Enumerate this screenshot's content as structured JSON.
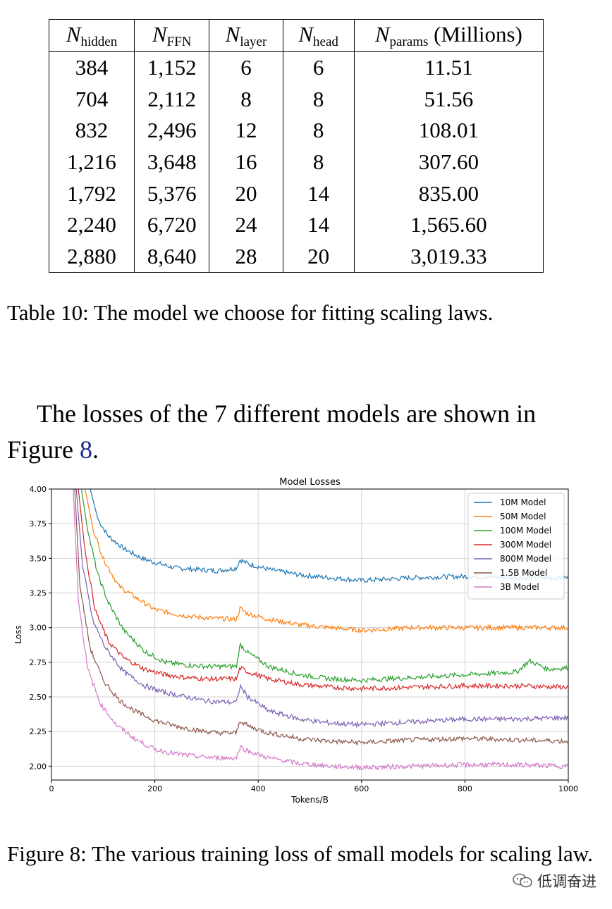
{
  "table": {
    "headers": [
      {
        "sym": "N",
        "sub": "hidden",
        "suffix": ""
      },
      {
        "sym": "N",
        "sub": "FFN",
        "suffix": ""
      },
      {
        "sym": "N",
        "sub": "layer",
        "suffix": ""
      },
      {
        "sym": "N",
        "sub": "head",
        "suffix": ""
      },
      {
        "sym": "N",
        "sub": "params",
        "suffix": " (Millions)"
      }
    ],
    "rows": [
      [
        "384",
        "1,152",
        "6",
        "6",
        "11.51"
      ],
      [
        "704",
        "2,112",
        "8",
        "8",
        "51.56"
      ],
      [
        "832",
        "2,496",
        "12",
        "8",
        "108.01"
      ],
      [
        "1,216",
        "3,648",
        "16",
        "8",
        "307.60"
      ],
      [
        "1,792",
        "5,376",
        "20",
        "14",
        "835.00"
      ],
      [
        "2,240",
        "6,720",
        "24",
        "14",
        "1,565.60"
      ],
      [
        "2,880",
        "8,640",
        "28",
        "20",
        "3,019.33"
      ]
    ],
    "caption": "Table 10: The model we choose for fitting scaling laws."
  },
  "paragraph": {
    "before": "The losses of the 7 different models are shown in Figure ",
    "ref": "8",
    "after": "."
  },
  "figure_caption": "Figure 8: The various training loss of small models for scaling law.",
  "watermark": "低调奋进",
  "chart_data": {
    "type": "line",
    "title": "Model Losses",
    "xlabel": "Tokens/B",
    "ylabel": "Loss",
    "xlim": [
      0,
      1000
    ],
    "ylim": [
      1.9,
      4.0
    ],
    "xticks": [
      0,
      200,
      400,
      600,
      800,
      1000
    ],
    "yticks": [
      2.0,
      2.25,
      2.5,
      2.75,
      3.0,
      3.25,
      3.5,
      3.75,
      4.0
    ],
    "tick_labels_y": [
      "2.00",
      "2.25",
      "2.50",
      "2.75",
      "3.00",
      "3.25",
      "3.50",
      "3.75",
      "4.00"
    ],
    "grid": true,
    "legend_position": "top-right",
    "series": [
      {
        "name": "10M Model",
        "color": "#1f77b4",
        "x": [
          75,
          90,
          110,
          140,
          175,
          200,
          240,
          280,
          320,
          358,
          365,
          380,
          420,
          480,
          540,
          600,
          700,
          800,
          900,
          1000
        ],
        "y": [
          4.0,
          3.78,
          3.66,
          3.57,
          3.5,
          3.47,
          3.43,
          3.42,
          3.41,
          3.43,
          3.49,
          3.46,
          3.42,
          3.38,
          3.36,
          3.34,
          3.36,
          3.37,
          3.36,
          3.36
        ]
      },
      {
        "name": "50M Model",
        "color": "#ff7f0e",
        "x": [
          65,
          80,
          100,
          130,
          170,
          200,
          250,
          300,
          358,
          365,
          380,
          420,
          480,
          540,
          600,
          700,
          800,
          900,
          1000
        ],
        "y": [
          4.0,
          3.72,
          3.5,
          3.3,
          3.2,
          3.13,
          3.09,
          3.07,
          3.06,
          3.14,
          3.1,
          3.06,
          3.02,
          3.0,
          2.98,
          3.0,
          3.0,
          3.0,
          3.0
        ]
      },
      {
        "name": "100M Model",
        "color": "#2ca02c",
        "x": [
          58,
          70,
          90,
          110,
          140,
          180,
          220,
          260,
          300,
          358,
          365,
          380,
          420,
          480,
          540,
          600,
          700,
          800,
          900,
          925,
          960,
          1000
        ],
        "y": [
          4.0,
          3.7,
          3.38,
          3.18,
          2.98,
          2.83,
          2.75,
          2.73,
          2.72,
          2.72,
          2.88,
          2.82,
          2.72,
          2.66,
          2.63,
          2.62,
          2.64,
          2.66,
          2.68,
          2.76,
          2.7,
          2.71
        ]
      },
      {
        "name": "300M Model",
        "color": "#d62728",
        "x": [
          52,
          65,
          85,
          110,
          140,
          180,
          220,
          260,
          300,
          358,
          365,
          380,
          420,
          480,
          540,
          600,
          700,
          800,
          900,
          1000
        ],
        "y": [
          4.0,
          3.55,
          3.12,
          2.9,
          2.78,
          2.7,
          2.66,
          2.64,
          2.63,
          2.63,
          2.71,
          2.68,
          2.63,
          2.59,
          2.57,
          2.56,
          2.57,
          2.58,
          2.58,
          2.57
        ]
      },
      {
        "name": "800M Model",
        "color": "#7b5fb5",
        "x": [
          48,
          60,
          80,
          105,
          140,
          180,
          220,
          260,
          300,
          358,
          365,
          380,
          420,
          480,
          540,
          600,
          700,
          800,
          900,
          1000
        ],
        "y": [
          4.0,
          3.45,
          3.05,
          2.85,
          2.68,
          2.58,
          2.53,
          2.5,
          2.47,
          2.46,
          2.58,
          2.5,
          2.4,
          2.34,
          2.31,
          2.3,
          2.32,
          2.34,
          2.34,
          2.35
        ]
      },
      {
        "name": "1.5B Model",
        "color": "#8c564b",
        "x": [
          45,
          55,
          75,
          100,
          130,
          160,
          200,
          240,
          280,
          320,
          358,
          365,
          380,
          420,
          480,
          540,
          600,
          700,
          800,
          900,
          1000
        ],
        "y": [
          4.0,
          3.3,
          2.85,
          2.62,
          2.48,
          2.4,
          2.33,
          2.29,
          2.26,
          2.24,
          2.24,
          2.33,
          2.29,
          2.24,
          2.2,
          2.18,
          2.17,
          2.19,
          2.2,
          2.19,
          2.18
        ]
      },
      {
        "name": "3B Model",
        "color": "#d479c9",
        "x": [
          42,
          52,
          70,
          95,
          125,
          160,
          200,
          240,
          280,
          320,
          358,
          365,
          380,
          420,
          480,
          540,
          600,
          700,
          800,
          900,
          1000
        ],
        "y": [
          4.0,
          3.2,
          2.7,
          2.45,
          2.3,
          2.2,
          2.12,
          2.09,
          2.07,
          2.06,
          2.06,
          2.14,
          2.11,
          2.06,
          2.02,
          2.0,
          1.99,
          2.0,
          2.01,
          2.01,
          2.0
        ]
      }
    ]
  }
}
